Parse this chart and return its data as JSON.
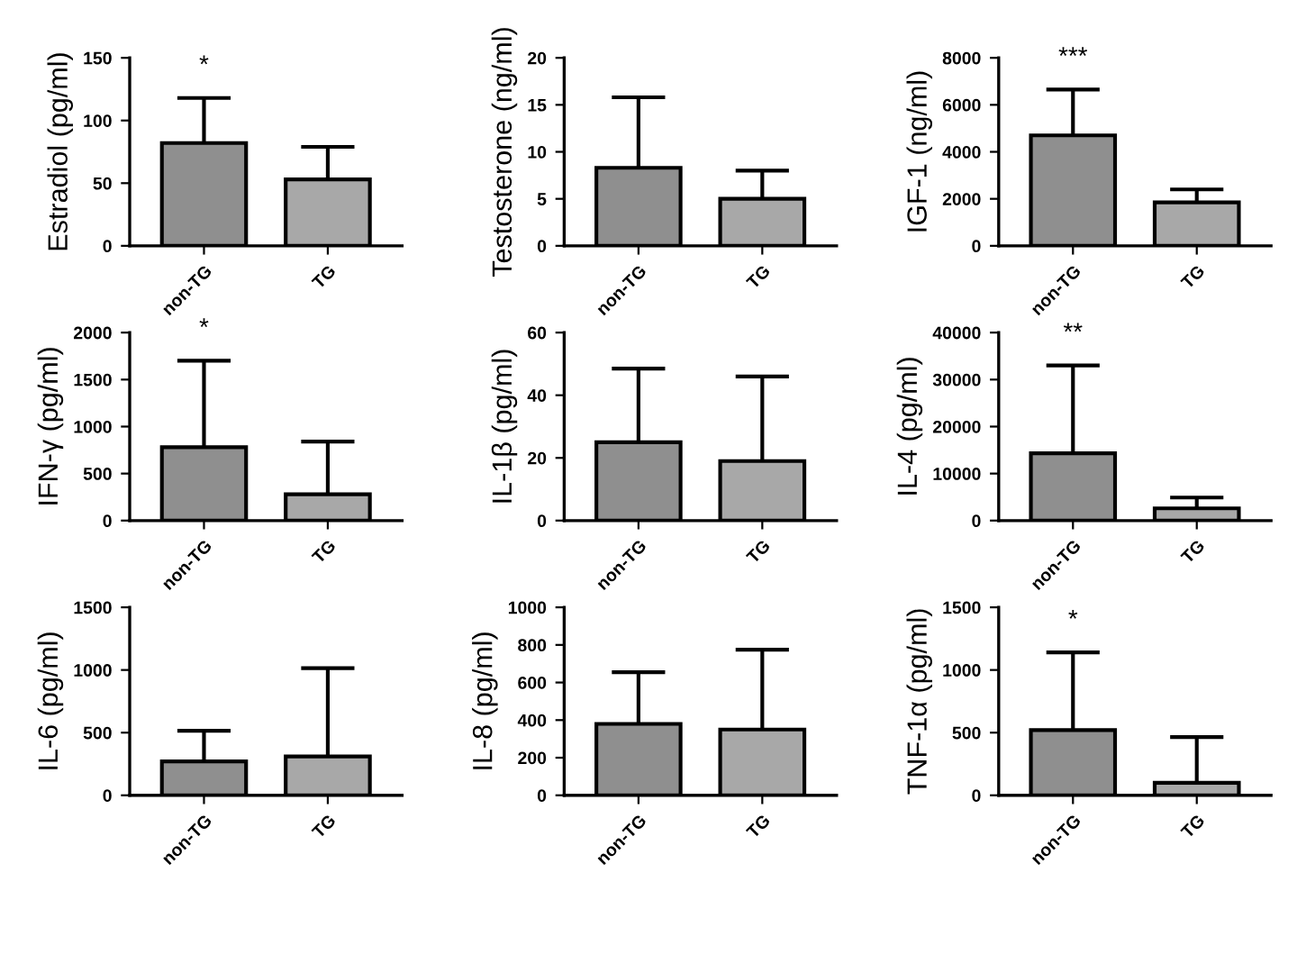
{
  "chart_data": [
    {
      "type": "bar",
      "ylabel": "Estradiol (pg/ml)",
      "categories": [
        "non-TG",
        "TG"
      ],
      "values": [
        82,
        53
      ],
      "errors": [
        [
          82,
          118
        ],
        [
          53,
          79
        ]
      ],
      "colors": [
        "#8f8f8f",
        "#a8a8a8"
      ],
      "ylim": [
        0,
        150
      ],
      "yticks": [
        0,
        50,
        100,
        150
      ],
      "grid": false,
      "annotations": [
        "*"
      ]
    },
    {
      "type": "bar",
      "ylabel": "Testosterone (ng/ml)",
      "categories": [
        "non-TG",
        "TG"
      ],
      "values": [
        8.3,
        5.0
      ],
      "errors": [
        [
          8.3,
          15.8
        ],
        [
          5.0,
          8.0
        ]
      ],
      "colors": [
        "#8f8f8f",
        "#a8a8a8"
      ],
      "ylim": [
        0,
        20
      ],
      "yticks": [
        0,
        5,
        10,
        15,
        20
      ],
      "grid": false
    },
    {
      "type": "bar",
      "ylabel": "IGF-1 (ng/ml)",
      "categories": [
        "non-TG",
        "TG"
      ],
      "values": [
        4700,
        1850
      ],
      "errors": [
        [
          4700,
          6650
        ],
        [
          1850,
          2400
        ]
      ],
      "colors": [
        "#8f8f8f",
        "#a8a8a8"
      ],
      "ylim": [
        0,
        8000
      ],
      "yticks": [
        0,
        2000,
        4000,
        6000,
        8000
      ],
      "grid": false,
      "annotations": [
        "***"
      ]
    },
    {
      "type": "bar",
      "ylabel": "IFN-γ (pg/ml)",
      "categories": [
        "non-TG",
        "TG"
      ],
      "values": [
        780,
        280
      ],
      "errors": [
        [
          780,
          1700
        ],
        [
          280,
          840
        ]
      ],
      "colors": [
        "#8f8f8f",
        "#a8a8a8"
      ],
      "ylim": [
        0,
        2000
      ],
      "yticks": [
        0,
        500,
        1000,
        1500,
        2000
      ],
      "grid": false,
      "annotations": [
        "*"
      ]
    },
    {
      "type": "bar",
      "ylabel": "IL-1β (pg/ml)",
      "categories": [
        "non-TG",
        "TG"
      ],
      "values": [
        25,
        19
      ],
      "errors": [
        [
          25,
          48.5
        ],
        [
          19,
          46
        ]
      ],
      "colors": [
        "#8f8f8f",
        "#a8a8a8"
      ],
      "ylim": [
        0,
        60
      ],
      "yticks": [
        0,
        20,
        40,
        60
      ],
      "grid": false
    },
    {
      "type": "bar",
      "ylabel": "IL-4 (pg/ml)",
      "categories": [
        "non-TG",
        "TG"
      ],
      "values": [
        14300,
        2600
      ],
      "errors": [
        [
          14300,
          33000
        ],
        [
          2600,
          4900
        ]
      ],
      "colors": [
        "#8f8f8f",
        "#a8a8a8"
      ],
      "ylim": [
        0,
        40000
      ],
      "yticks": [
        0,
        10000,
        20000,
        30000,
        40000
      ],
      "grid": false,
      "annotations": [
        "**"
      ]
    },
    {
      "type": "bar",
      "ylabel": "IL-6 (pg/ml)",
      "categories": [
        "non-TG",
        "TG"
      ],
      "values": [
        270,
        310
      ],
      "errors": [
        [
          270,
          515
        ],
        [
          310,
          1015
        ]
      ],
      "colors": [
        "#8f8f8f",
        "#a8a8a8"
      ],
      "ylim": [
        0,
        1500
      ],
      "yticks": [
        0,
        500,
        1000,
        1500
      ],
      "grid": false
    },
    {
      "type": "bar",
      "ylabel": "IL-8 (pg/ml)",
      "categories": [
        "non-TG",
        "TG"
      ],
      "values": [
        380,
        350
      ],
      "errors": [
        [
          380,
          655
        ],
        [
          350,
          775
        ]
      ],
      "colors": [
        "#8f8f8f",
        "#a8a8a8"
      ],
      "ylim": [
        0,
        1000
      ],
      "yticks": [
        0,
        200,
        400,
        600,
        800,
        1000
      ],
      "grid": false
    },
    {
      "type": "bar",
      "ylabel": "TNF-1α (pg/ml)",
      "categories": [
        "non-TG",
        "TG"
      ],
      "values": [
        520,
        100
      ],
      "errors": [
        [
          520,
          1140
        ],
        [
          100,
          465
        ]
      ],
      "colors": [
        "#8f8f8f",
        "#a8a8a8"
      ],
      "ylim": [
        0,
        1500
      ],
      "yticks": [
        0,
        500,
        1000,
        1500
      ],
      "grid": false,
      "annotations": [
        "*"
      ]
    }
  ]
}
